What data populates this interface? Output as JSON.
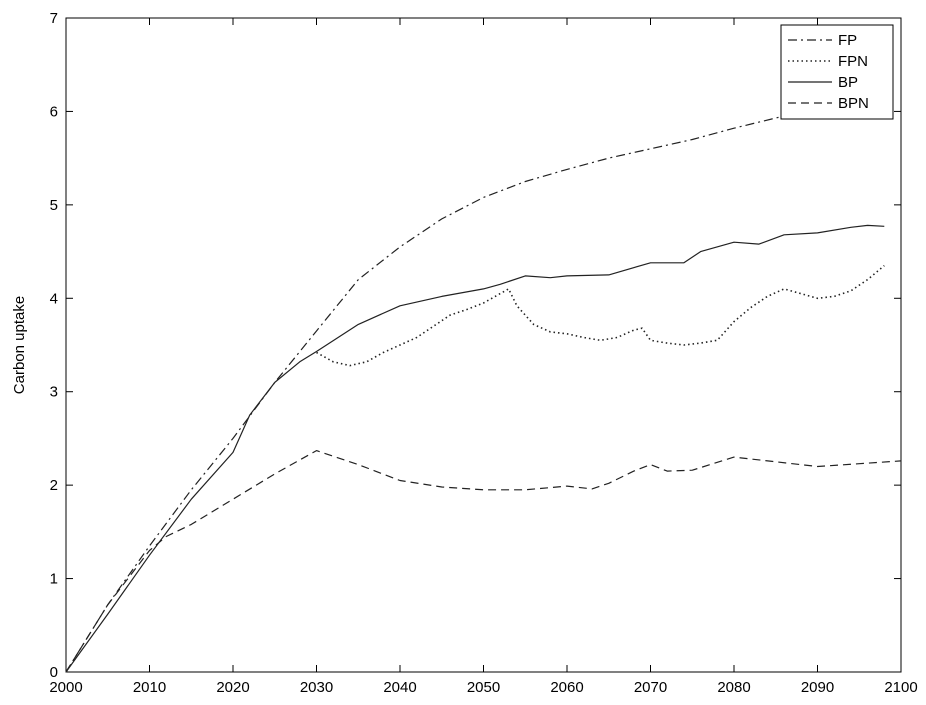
{
  "chart_data": {
    "type": "line",
    "title": "",
    "xlabel": "",
    "ylabel": "Carbon uptake",
    "xlim": [
      2000,
      2100
    ],
    "ylim": [
      0,
      7
    ],
    "xticks": [
      2000,
      2010,
      2020,
      2030,
      2040,
      2050,
      2060,
      2070,
      2080,
      2090,
      2100
    ],
    "yticks": [
      0,
      1,
      2,
      3,
      4,
      5,
      6,
      7
    ],
    "grid": false,
    "legend_position": "top-right",
    "series": [
      {
        "name": "FP",
        "style": "dashdot",
        "x": [
          2000,
          2005,
          2010,
          2015,
          2020,
          2025,
          2030,
          2035,
          2040,
          2045,
          2050,
          2055,
          2060,
          2065,
          2070,
          2075,
          2080,
          2085,
          2090,
          2095,
          2098
        ],
        "y": [
          0,
          0.72,
          1.35,
          1.95,
          2.5,
          3.1,
          3.65,
          4.2,
          4.55,
          4.85,
          5.08,
          5.25,
          5.38,
          5.5,
          5.6,
          5.7,
          5.82,
          5.93,
          6.03,
          6.12,
          6.15
        ]
      },
      {
        "name": "FPN",
        "style": "dotted",
        "x": [
          2030,
          2032,
          2034,
          2036,
          2038,
          2040,
          2042,
          2044,
          2046,
          2048,
          2050,
          2052,
          2053,
          2054,
          2056,
          2058,
          2060,
          2062,
          2064,
          2066,
          2068,
          2069,
          2070,
          2072,
          2074,
          2076,
          2078,
          2080,
          2082,
          2084,
          2086,
          2088,
          2090,
          2092,
          2094,
          2096,
          2098
        ],
        "y": [
          3.42,
          3.32,
          3.28,
          3.32,
          3.42,
          3.5,
          3.58,
          3.7,
          3.82,
          3.88,
          3.95,
          4.05,
          4.1,
          3.92,
          3.72,
          3.64,
          3.62,
          3.58,
          3.55,
          3.58,
          3.66,
          3.68,
          3.55,
          3.52,
          3.5,
          3.52,
          3.55,
          3.75,
          3.9,
          4.02,
          4.1,
          4.05,
          4.0,
          4.02,
          4.08,
          4.2,
          4.35
        ]
      },
      {
        "name": "BP",
        "style": "solid",
        "x": [
          2000,
          2005,
          2010,
          2015,
          2020,
          2022,
          2025,
          2028,
          2030,
          2035,
          2040,
          2045,
          2050,
          2052,
          2055,
          2058,
          2060,
          2065,
          2070,
          2074,
          2076,
          2080,
          2083,
          2086,
          2090,
          2094,
          2096,
          2098
        ],
        "y": [
          0,
          0.62,
          1.25,
          1.85,
          2.35,
          2.75,
          3.1,
          3.32,
          3.43,
          3.72,
          3.92,
          4.02,
          4.1,
          4.15,
          4.24,
          4.22,
          4.24,
          4.25,
          4.38,
          4.38,
          4.5,
          4.6,
          4.58,
          4.68,
          4.7,
          4.76,
          4.78,
          4.77
        ]
      },
      {
        "name": "BPN",
        "style": "dashed",
        "x": [
          2000,
          2005,
          2010,
          2012,
          2015,
          2020,
          2025,
          2030,
          2035,
          2040,
          2045,
          2050,
          2055,
          2060,
          2063,
          2065,
          2068,
          2070,
          2072,
          2075,
          2080,
          2085,
          2090,
          2095,
          2100
        ],
        "y": [
          0,
          0.72,
          1.3,
          1.45,
          1.58,
          1.85,
          2.12,
          2.37,
          2.22,
          2.05,
          1.98,
          1.95,
          1.95,
          1.99,
          1.96,
          2.02,
          2.15,
          2.22,
          2.15,
          2.16,
          2.3,
          2.25,
          2.2,
          2.23,
          2.26
        ]
      }
    ]
  }
}
